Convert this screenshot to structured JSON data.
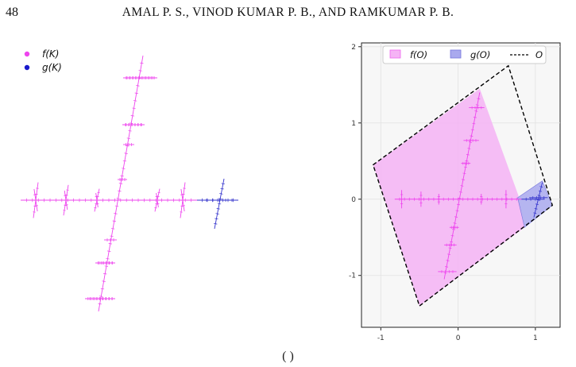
{
  "header": {
    "page_number": "48",
    "running_head": "AMAL P. S., VINOD KUMAR P. B., AND RAMKUMAR P. B."
  },
  "caption_fragment": "(    )",
  "colors": {
    "f_set": "#ee44ee",
    "g_set": "#3333cc",
    "f_fill": "#f5b3f5",
    "g_fill": "#a9a9ee",
    "boundary": "#000000",
    "axes_bg": "#f7f7f7",
    "grid": "#e2e2e2"
  },
  "chart_data": [
    {
      "type": "scatter",
      "panel": "left",
      "axes_visible": false,
      "legend": {
        "placement": "top-left",
        "entries": [
          "f(K)",
          "g(K)"
        ]
      },
      "series": [
        {
          "name": "f(K)",
          "color": "#ee44ee",
          "description": "cross-shaped self-similar point set"
        },
        {
          "name": "g(K)",
          "color": "#3333cc",
          "description": "small cross at right end"
        }
      ]
    },
    {
      "type": "area",
      "panel": "right",
      "xlim": [
        -1.25,
        1.32
      ],
      "ylim": [
        -1.68,
        2.05
      ],
      "xticks": [
        "-1",
        "0",
        "1"
      ],
      "yticks": [
        "-1",
        "0",
        "1",
        "2"
      ],
      "grid": true,
      "legend": {
        "placement": "top",
        "entries": [
          "f(O)",
          "g(O)",
          "O"
        ]
      },
      "polygons": [
        {
          "name": "O",
          "style": "dashed",
          "vertices": [
            [
              -1.1,
              0.45
            ],
            [
              0.65,
              1.75
            ],
            [
              1.22,
              -0.08
            ],
            [
              -0.5,
              -1.4
            ]
          ]
        },
        {
          "name": "f(O)",
          "style": "filled",
          "vertices": [
            [
              0.28,
              1.45
            ],
            [
              0.78,
              0.05
            ],
            [
              0.86,
              -0.37
            ],
            [
              -0.5,
              -1.4
            ],
            [
              -1.1,
              0.45
            ]
          ]
        },
        {
          "name": "g(O)",
          "style": "filled",
          "vertices": [
            [
              0.77,
              0.02
            ],
            [
              1.09,
              0.24
            ],
            [
              1.22,
              -0.08
            ],
            [
              0.86,
              -0.37
            ]
          ]
        }
      ],
      "overlay_sets": [
        {
          "name": "f(K)",
          "color": "#ee44ee"
        },
        {
          "name": "g(K)",
          "color": "#3333cc"
        }
      ]
    }
  ]
}
